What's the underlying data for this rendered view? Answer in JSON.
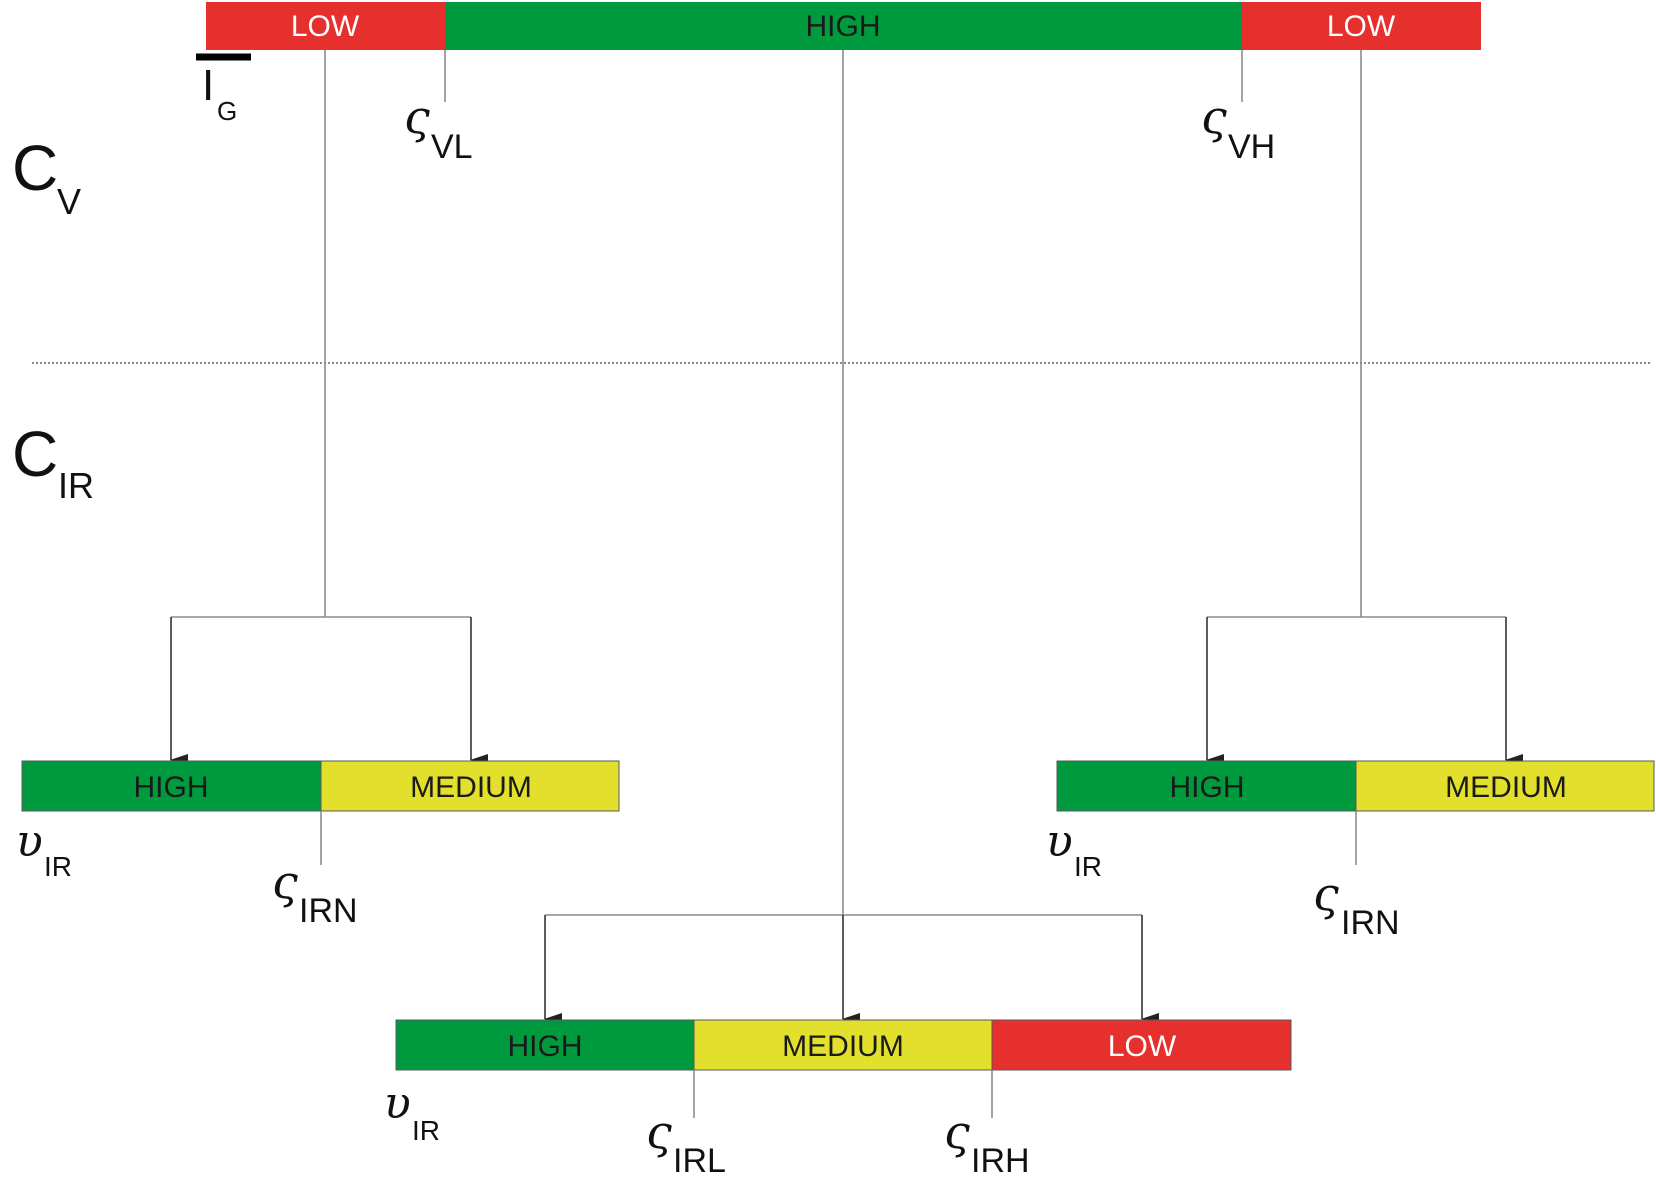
{
  "colors": {
    "low": "#e5302d",
    "high": "#009a3e",
    "medium": "#e2e02c",
    "connector": "#8c8c8c",
    "divider": "#888888"
  },
  "top_bar": {
    "segments": [
      {
        "label": "LOW",
        "level": "low"
      },
      {
        "label": "HIGH",
        "level": "high"
      },
      {
        "label": "LOW",
        "level": "low"
      }
    ]
  },
  "labels": {
    "cv": {
      "main": "C",
      "sub": "V"
    },
    "cir": {
      "main": "C",
      "sub": "IR"
    },
    "ig": {
      "main": "I",
      "sub": "G"
    },
    "svl": {
      "main": "ς",
      "sub": "VL"
    },
    "svh": {
      "main": "ς",
      "sub": "VH"
    }
  },
  "left_bar": {
    "segments": [
      {
        "label": "HIGH",
        "level": "high"
      },
      {
        "label": "MEDIUM",
        "level": "medium"
      }
    ],
    "v_label": {
      "main": "υ",
      "sub": "IR"
    },
    "threshold": {
      "main": "ς",
      "sub": "IRN"
    }
  },
  "right_bar": {
    "segments": [
      {
        "label": "HIGH",
        "level": "high"
      },
      {
        "label": "MEDIUM",
        "level": "medium"
      }
    ],
    "v_label": {
      "main": "υ",
      "sub": "IR"
    },
    "threshold": {
      "main": "ς",
      "sub": "IRN"
    }
  },
  "bottom_bar": {
    "segments": [
      {
        "label": "HIGH",
        "level": "high"
      },
      {
        "label": "MEDIUM",
        "level": "medium"
      },
      {
        "label": "LOW",
        "level": "low"
      }
    ],
    "v_label": {
      "main": "υ",
      "sub": "IR"
    },
    "threshold_low": {
      "main": "ς",
      "sub": "IRL"
    },
    "threshold_high": {
      "main": "ς",
      "sub": "IRH"
    }
  }
}
